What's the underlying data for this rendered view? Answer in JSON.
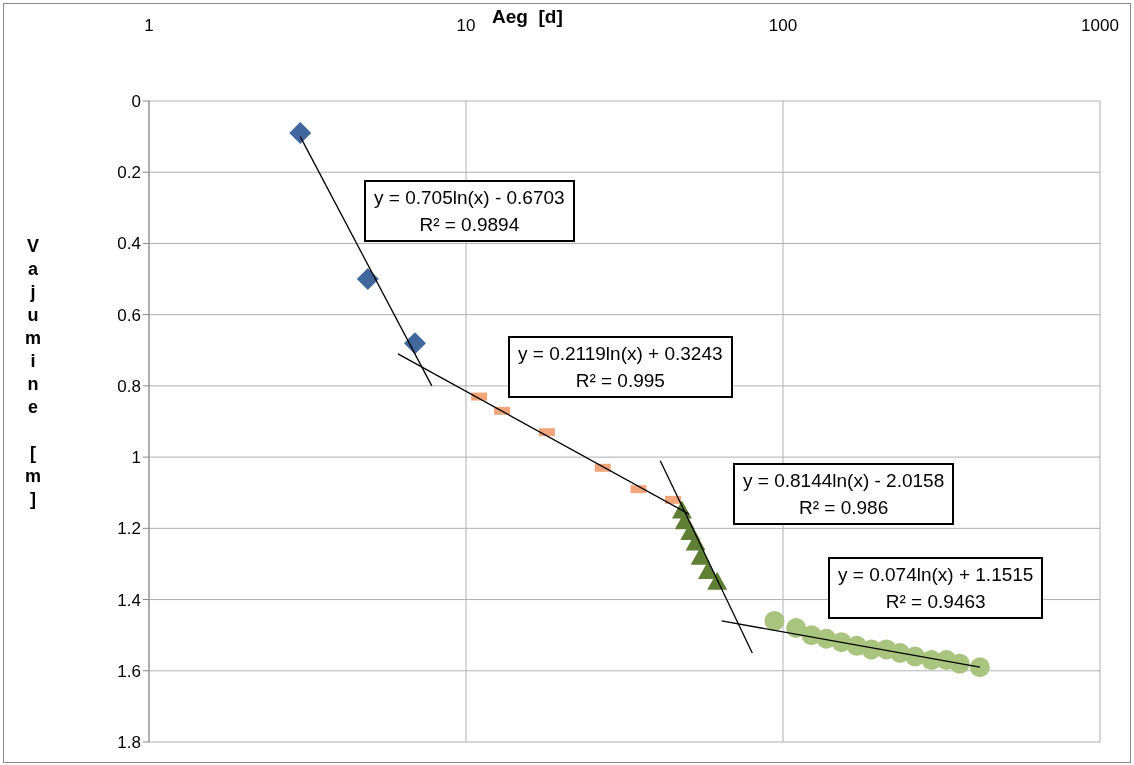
{
  "chart_data": {
    "type": "scatter",
    "xlabel": "Aeg  [d]",
    "ylabel": "Vajumine [m]",
    "log": "x",
    "grid": true,
    "xlim": [
      1,
      1000
    ],
    "xticks": [
      1,
      10,
      100,
      1000
    ],
    "ylim": [
      1.8,
      0
    ],
    "yticks": [
      0,
      0.2,
      0.4,
      0.6,
      0.8,
      1,
      1.2,
      1.4,
      1.6,
      1.8
    ],
    "series": [
      {
        "marker": "diamond",
        "color": "#41689e",
        "x": [
          3,
          4.9,
          6.9
        ],
        "values": [
          0.09,
          0.5,
          0.68
        ]
      },
      {
        "color": "#f0a67a",
        "x": [
          11,
          13,
          18,
          27,
          35,
          45
        ],
        "values": [
          0.83,
          0.87,
          0.93,
          1.03,
          1.09,
          1.12
        ]
      },
      {
        "marker": "triangle",
        "color": "#5f7f35",
        "x": [
          48,
          49,
          51,
          53,
          55,
          58,
          62
        ],
        "values": [
          1.15,
          1.18,
          1.21,
          1.24,
          1.28,
          1.32,
          1.35
        ]
      },
      {
        "marker": "circle",
        "color": "#a9c47f",
        "x": [
          94,
          110,
          123,
          137,
          153,
          171,
          190,
          212,
          234,
          261,
          294,
          328,
          361,
          418
        ],
        "values": [
          1.46,
          1.48,
          1.5,
          1.51,
          1.52,
          1.53,
          1.54,
          1.54,
          1.55,
          1.56,
          1.57,
          1.57,
          1.58,
          1.59
        ]
      },
      {
        "type": "line",
        "color": "#000000",
        "x": [
          3,
          7.8
        ],
        "values": [
          0.1,
          0.8
        ]
      },
      {
        "type": "line",
        "color": "#000000",
        "x": [
          6.1,
          50.5
        ],
        "values": [
          0.71,
          1.16
        ]
      },
      {
        "type": "line",
        "color": "#000000",
        "x": [
          41,
          80
        ],
        "values": [
          1.01,
          1.55
        ]
      },
      {
        "type": "line",
        "color": "#000000",
        "x": [
          64,
          418
        ],
        "values": [
          1.46,
          1.59
        ]
      }
    ],
    "annotations": [
      "y = 0.705ln(x) - 0.6703\nR² = 0.9894",
      "y = 0.2119ln(x) + 0.3243\nR² = 0.995",
      "y = 0.8144ln(x) - 2.0158\nR² = 0.986",
      "y = 0.074ln(x) + 1.1515\nR² = 0.9463"
    ]
  }
}
